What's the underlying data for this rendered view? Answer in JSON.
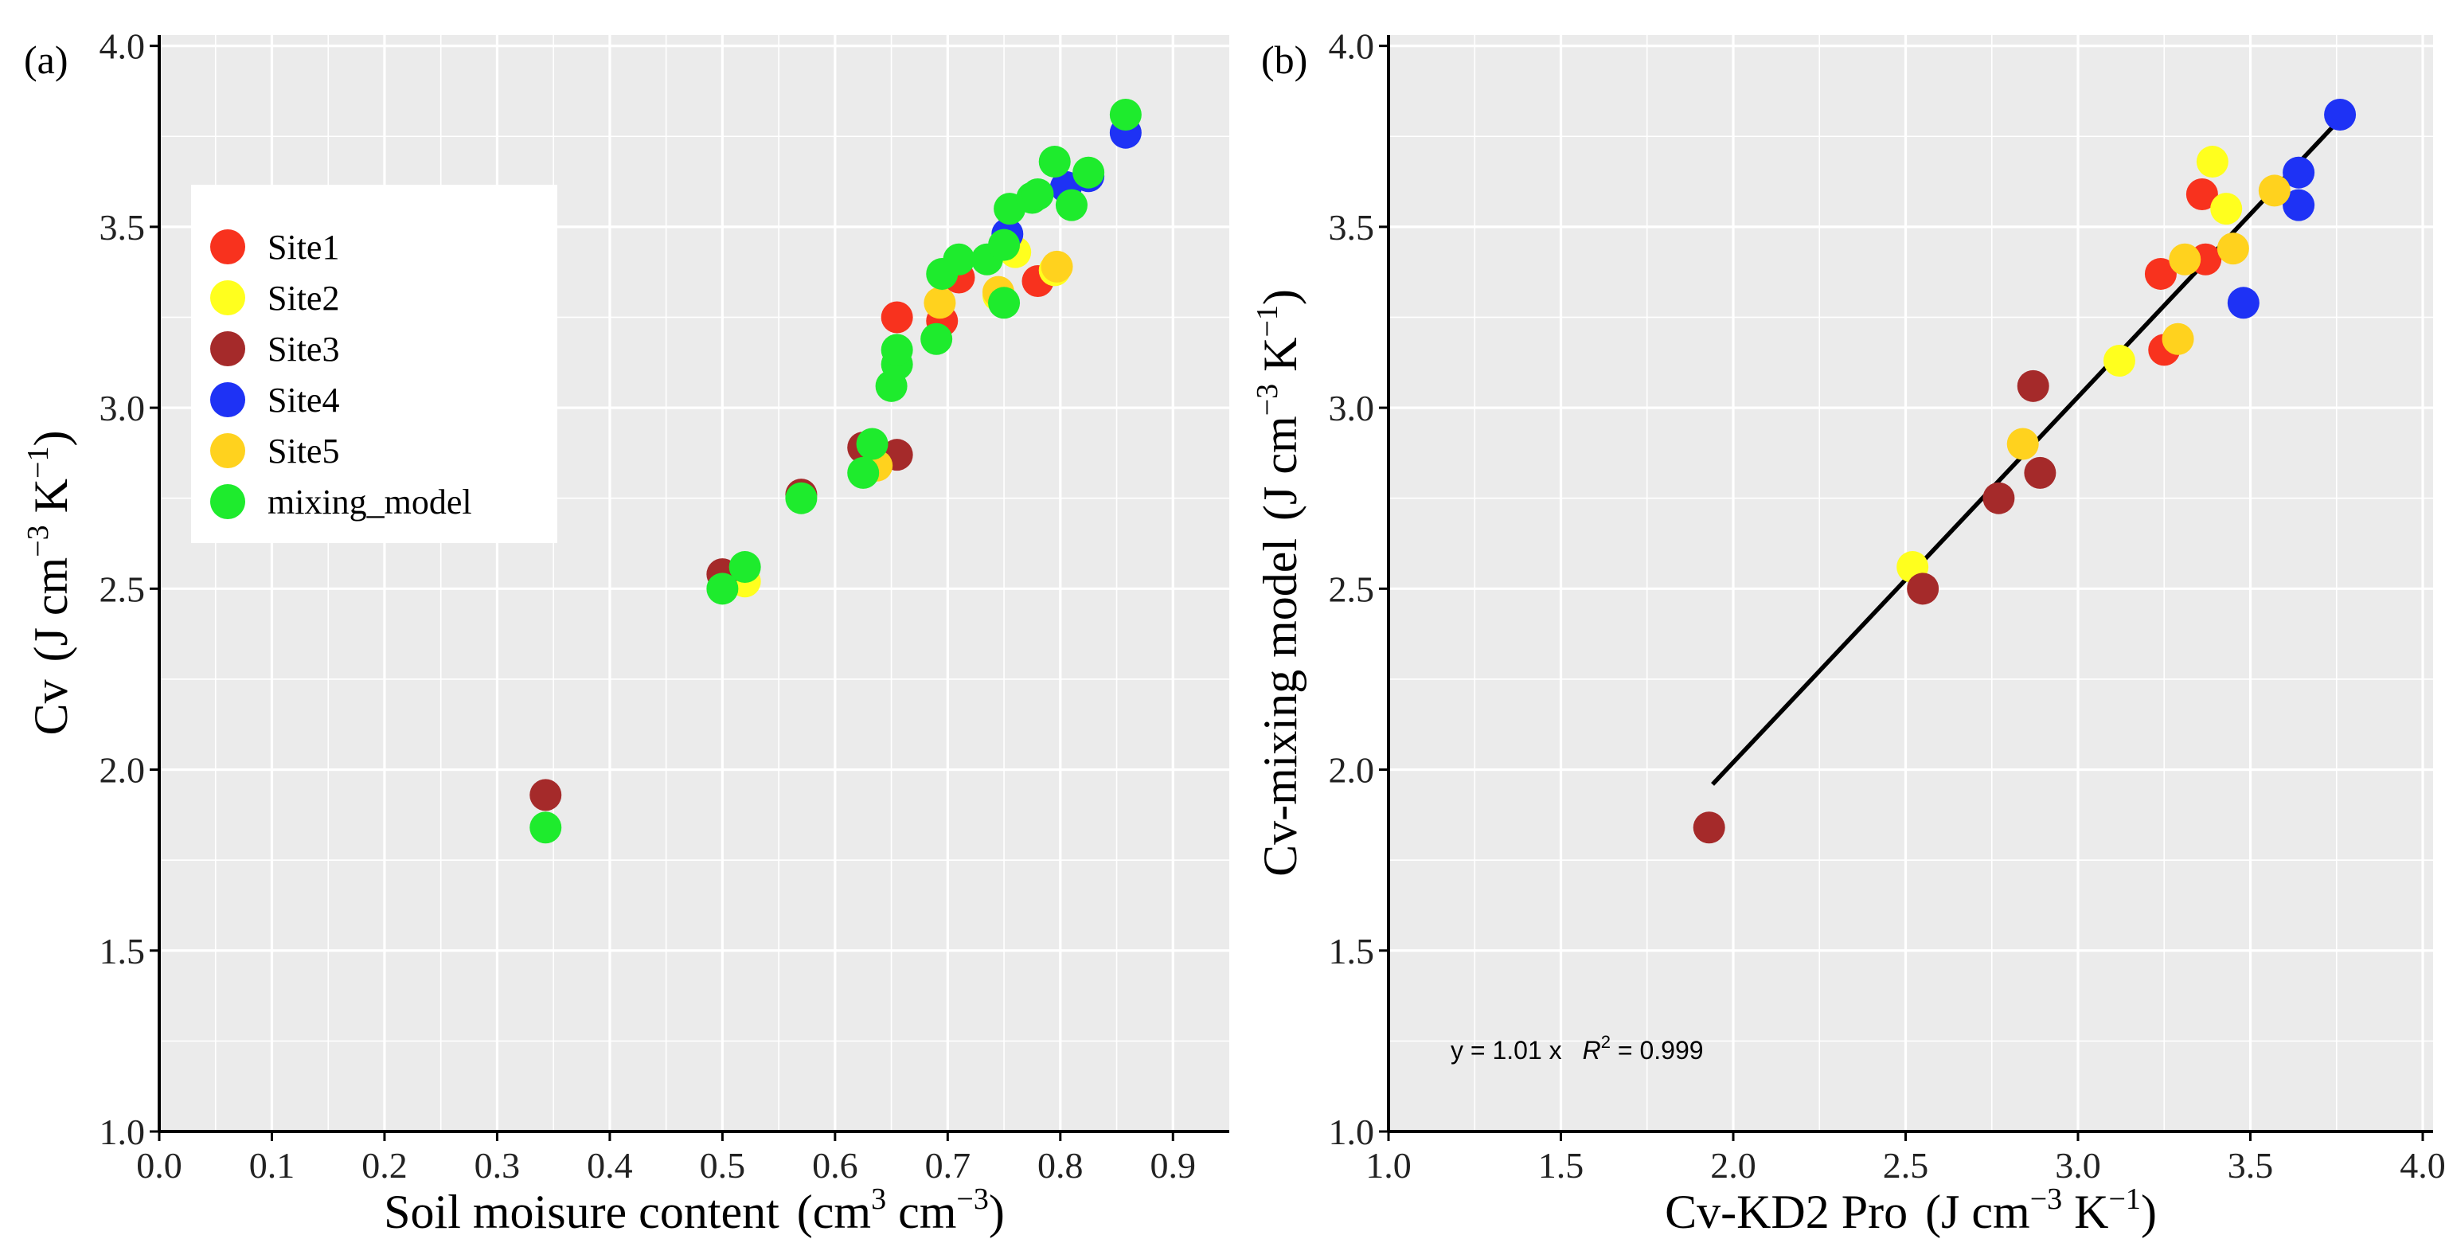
{
  "chart_data": [
    {
      "type": "scatter",
      "panel_label": "(a)",
      "xlabel": "Soil moisure content",
      "xlabel_units": {
        "open": "(cm",
        "mid": " cm",
        "close": ")",
        "sup1": "3",
        "sup2": "−3"
      },
      "ylabel": "Cv",
      "ylabel_units": {
        "open": "(J cm",
        "mid": " K",
        "close": ")",
        "sup1": "−3",
        "sup2": "−1"
      },
      "xlim": [
        0.0,
        0.95
      ],
      "ylim": [
        1.0,
        4.03
      ],
      "xticks": [
        0.0,
        0.1,
        0.2,
        0.3,
        0.4,
        0.5,
        0.6,
        0.7,
        0.8,
        0.9
      ],
      "xtick_labels": [
        "0.0",
        "0.1",
        "0.2",
        "0.3",
        "0.4",
        "0.5",
        "0.6",
        "0.7",
        "0.8",
        "0.9"
      ],
      "yticks": [
        1.0,
        1.5,
        2.0,
        2.5,
        3.0,
        3.5,
        4.0
      ],
      "ytick_labels": [
        "1.0",
        "1.5",
        "2.0",
        "2.5",
        "3.0",
        "3.5",
        "4.0"
      ],
      "legend": {
        "placement": "upper-left",
        "entries": [
          {
            "label": "Site1",
            "color": "#f8321e"
          },
          {
            "label": "Site2",
            "color": "#ffff1e"
          },
          {
            "label": "Site3",
            "color": "#a52a2a"
          },
          {
            "label": "Site4",
            "color": "#1e32f5"
          },
          {
            "label": "Site5",
            "color": "#ffd21e"
          },
          {
            "label": "mixing_model",
            "color": "#1eeb2d"
          }
        ]
      },
      "series": [
        {
          "name": "Site1",
          "color": "#f8321e",
          "points": [
            [
              0.655,
              3.25
            ],
            [
              0.71,
              3.36
            ],
            [
              0.78,
              3.35
            ],
            [
              0.695,
              3.24
            ]
          ]
        },
        {
          "name": "Site2",
          "color": "#ffff1e",
          "points": [
            [
              0.52,
              2.52
            ],
            [
              0.76,
              3.43
            ],
            [
              0.795,
              3.38
            ],
            [
              0.745,
              3.31
            ]
          ]
        },
        {
          "name": "Site3",
          "color": "#a52a2a",
          "points": [
            [
              0.343,
              1.93
            ],
            [
              0.5,
              2.54
            ],
            [
              0.57,
              2.76
            ],
            [
              0.625,
              2.89
            ],
            [
              0.655,
              2.87
            ]
          ]
        },
        {
          "name": "Site4",
          "color": "#1e32f5",
          "points": [
            [
              0.753,
              3.48
            ],
            [
              0.805,
              3.61
            ],
            [
              0.825,
              3.64
            ],
            [
              0.858,
              3.76
            ]
          ]
        },
        {
          "name": "Site5",
          "color": "#ffd21e",
          "points": [
            [
              0.637,
              2.84
            ],
            [
              0.693,
              3.29
            ],
            [
              0.745,
              3.32
            ],
            [
              0.797,
              3.39
            ]
          ]
        },
        {
          "name": "mixing_model",
          "color": "#1eeb2d",
          "points": [
            [
              0.343,
              1.84
            ],
            [
              0.5,
              2.5
            ],
            [
              0.52,
              2.56
            ],
            [
              0.57,
              2.75
            ],
            [
              0.625,
              2.82
            ],
            [
              0.633,
              2.9
            ],
            [
              0.65,
              3.06
            ],
            [
              0.655,
              3.12
            ],
            [
              0.655,
              3.16
            ],
            [
              0.69,
              3.19
            ],
            [
              0.695,
              3.37
            ],
            [
              0.71,
              3.41
            ],
            [
              0.735,
              3.41
            ],
            [
              0.75,
              3.29
            ],
            [
              0.75,
              3.45
            ],
            [
              0.755,
              3.55
            ],
            [
              0.775,
              3.58
            ],
            [
              0.78,
              3.59
            ],
            [
              0.795,
              3.68
            ],
            [
              0.81,
              3.56
            ],
            [
              0.825,
              3.65
            ],
            [
              0.858,
              3.81
            ]
          ]
        }
      ]
    },
    {
      "type": "scatter",
      "panel_label": "(b)",
      "xlabel": "Cv-KD2 Pro",
      "xlabel_units": {
        "open": "(J cm",
        "mid": " K",
        "close": ")",
        "sup1": "−3",
        "sup2": "−1"
      },
      "ylabel": "Cv-mixing model",
      "ylabel_units": {
        "open": "(J cm",
        "mid": " K",
        "close": ")",
        "sup1": "−3",
        "sup2": "−1"
      },
      "xlim": [
        1.0,
        4.03
      ],
      "ylim": [
        1.0,
        4.03
      ],
      "xticks": [
        1.0,
        1.5,
        2.0,
        2.5,
        3.0,
        3.5,
        4.0
      ],
      "xtick_labels": [
        "1.0",
        "1.5",
        "2.0",
        "2.5",
        "3.0",
        "3.5",
        "4.0"
      ],
      "yticks": [
        1.0,
        1.5,
        2.0,
        2.5,
        3.0,
        3.5,
        4.0
      ],
      "ytick_labels": [
        "1.0",
        "1.5",
        "2.0",
        "2.5",
        "3.0",
        "3.5",
        "4.0"
      ],
      "fit_line": {
        "slope": 1.01,
        "x_range": [
          1.94,
          3.76
        ],
        "color": "#000000"
      },
      "annotation": {
        "y_eq": "y = 1.01 x",
        "r2_label": "R",
        "r2_sup": "2",
        "r2_value": " = 0.999",
        "position": "bottom-left"
      },
      "series": [
        {
          "name": "Site1",
          "color": "#f8321e",
          "points": [
            [
              3.36,
              3.59
            ],
            [
              3.24,
              3.37
            ],
            [
              3.37,
              3.41
            ],
            [
              3.25,
              3.16
            ]
          ]
        },
        {
          "name": "Site2",
          "color": "#ffff1e",
          "points": [
            [
              2.52,
              2.56
            ],
            [
              3.12,
              3.13
            ],
            [
              3.39,
              3.68
            ],
            [
              3.43,
              3.55
            ]
          ]
        },
        {
          "name": "Site3",
          "color": "#a52a2a",
          "points": [
            [
              1.93,
              1.84
            ],
            [
              2.55,
              2.5
            ],
            [
              2.77,
              2.75
            ],
            [
              2.89,
              2.82
            ],
            [
              2.87,
              3.06
            ]
          ]
        },
        {
          "name": "Site4",
          "color": "#1e32f5",
          "points": [
            [
              3.48,
              3.29
            ],
            [
              3.64,
              3.56
            ],
            [
              3.64,
              3.65
            ],
            [
              3.76,
              3.81
            ]
          ]
        },
        {
          "name": "Site5",
          "color": "#ffd21e",
          "points": [
            [
              2.84,
              2.9
            ],
            [
              3.29,
              3.19
            ],
            [
              3.31,
              3.41
            ],
            [
              3.45,
              3.44
            ],
            [
              3.57,
              3.6
            ]
          ]
        }
      ]
    }
  ]
}
